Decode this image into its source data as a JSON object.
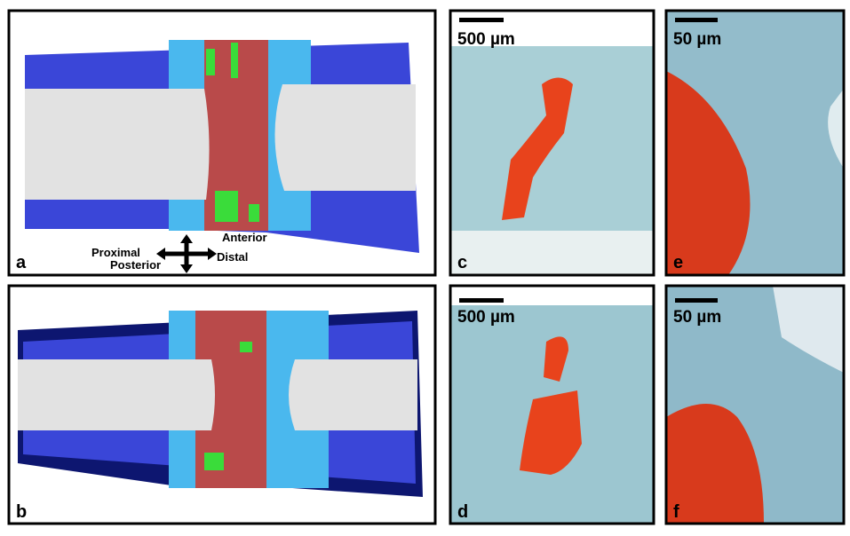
{
  "panels": [
    {
      "label": "a",
      "annotations": [
        "Anterior",
        "Proximal",
        "Distal",
        "Posterior"
      ]
    },
    {
      "label": "b"
    },
    {
      "label": "c",
      "scale_bar": "500 µm"
    },
    {
      "label": "d",
      "scale_bar": "500 µm"
    },
    {
      "label": "e",
      "scale_bar": "50 µm"
    },
    {
      "label": "f",
      "scale_bar": "50 µm"
    }
  ]
}
